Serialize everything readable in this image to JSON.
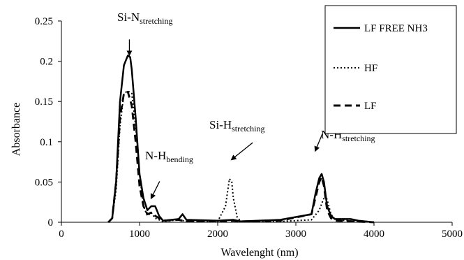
{
  "chart_data": {
    "type": "line",
    "title": "",
    "xlabel": "Wavelenght (nm)",
    "ylabel": "Absorbance",
    "xlim": [
      0,
      5000
    ],
    "ylim": [
      0,
      0.25
    ],
    "x_ticks": [
      "0",
      "1000",
      "2000",
      "3000",
      "4000",
      "5000"
    ],
    "y_ticks": [
      "0",
      "0.05",
      "0.1",
      "0.15",
      "0.2",
      "0.25"
    ],
    "grid": false,
    "legend_position": "top-right",
    "colors": {
      "series": "#000000"
    },
    "series": [
      {
        "name": "LF FREE NH3",
        "style": "solid",
        "x": [
          600,
          650,
          700,
          750,
          800,
          850,
          880,
          900,
          950,
          1000,
          1050,
          1100,
          1150,
          1200,
          1250,
          1300,
          1500,
          1550,
          1600,
          2000,
          2200,
          2300,
          2800,
          3200,
          3250,
          3300,
          3330,
          3360,
          3400,
          3450,
          3500,
          3700,
          3800,
          4000
        ],
        "y": [
          0,
          0.005,
          0.05,
          0.15,
          0.195,
          0.207,
          0.205,
          0.19,
          0.13,
          0.06,
          0.03,
          0.015,
          0.02,
          0.02,
          0.008,
          0.002,
          0.004,
          0.01,
          0.003,
          0.002,
          0.003,
          0.001,
          0.003,
          0.01,
          0.035,
          0.055,
          0.06,
          0.05,
          0.02,
          0.008,
          0.004,
          0.004,
          0.002,
          0
        ]
      },
      {
        "name": "HF",
        "style": "dotted",
        "x": [
          600,
          650,
          700,
          750,
          800,
          850,
          900,
          950,
          1000,
          1050,
          1100,
          1150,
          1200,
          1300,
          1500,
          1600,
          2000,
          2100,
          2150,
          2180,
          2200,
          2250,
          2300,
          2800,
          3200,
          3300,
          3350,
          3380,
          3400,
          3450,
          3500,
          4000
        ],
        "y": [
          0,
          0.005,
          0.04,
          0.12,
          0.16,
          0.163,
          0.16,
          0.12,
          0.06,
          0.02,
          0.008,
          0.012,
          0.005,
          0.001,
          0.003,
          0.001,
          0.001,
          0.02,
          0.054,
          0.05,
          0.03,
          0.006,
          0.001,
          0.001,
          0.003,
          0.015,
          0.028,
          0.033,
          0.028,
          0.01,
          0.003,
          0
        ]
      },
      {
        "name": "LF",
        "style": "dashed",
        "x": [
          600,
          650,
          700,
          750,
          800,
          850,
          900,
          950,
          1000,
          1050,
          1100,
          1150,
          1200,
          1300,
          1500,
          1600,
          2000,
          2200,
          2300,
          2800,
          3200,
          3250,
          3300,
          3330,
          3360,
          3400,
          3450,
          3500,
          4000
        ],
        "y": [
          0,
          0.005,
          0.05,
          0.13,
          0.16,
          0.162,
          0.145,
          0.1,
          0.045,
          0.02,
          0.01,
          0.012,
          0.008,
          0.002,
          0.003,
          0.001,
          0.001,
          0.002,
          0.001,
          0.002,
          0.01,
          0.03,
          0.05,
          0.056,
          0.045,
          0.015,
          0.005,
          0.002,
          0
        ]
      }
    ],
    "annotations": [
      {
        "main": "Si-N",
        "sub": "stretching",
        "points_to": [
          870,
          0.208
        ]
      },
      {
        "main": "N-H",
        "sub": "bending",
        "points_to": [
          1150,
          0.03
        ]
      },
      {
        "main": "Si-H",
        "sub": "stretching",
        "points_to": [
          2180,
          0.078
        ]
      },
      {
        "main": "N-H",
        "sub": "stretching",
        "points_to": [
          3250,
          0.089
        ]
      }
    ]
  }
}
